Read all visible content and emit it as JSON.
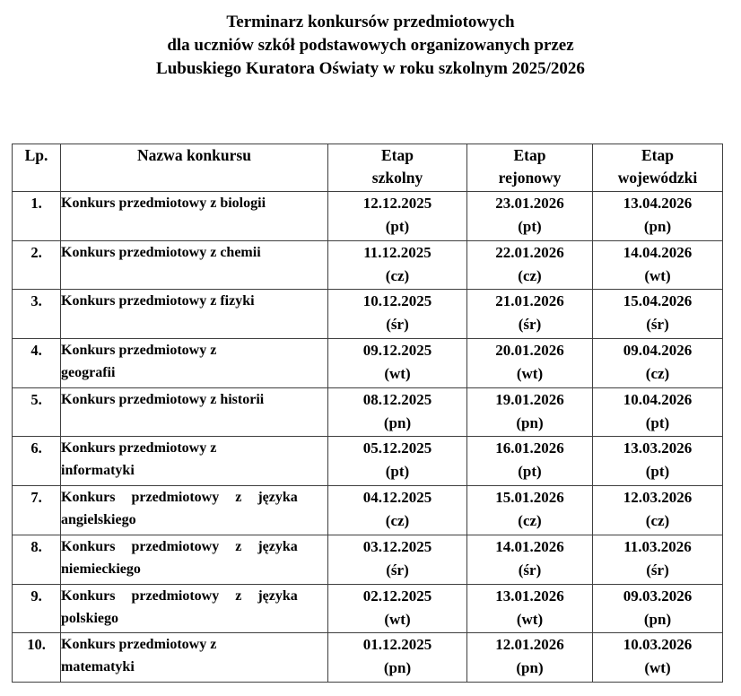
{
  "colors": {
    "background": "#ffffff",
    "text": "#000000",
    "table_border": "#3f3f3f"
  },
  "title": {
    "lines": [
      "Terminarz konkursów przedmiotowych",
      "dla uczniów szkół podstawowych organizowanych przez",
      "Lubuskiego Kuratora Oświaty w roku szkolnym 2025/2026"
    ]
  },
  "table": {
    "headers": {
      "lp": "Lp.",
      "name": "Nazwa konkursu",
      "school": {
        "line1": "Etap",
        "line2": "szkolny"
      },
      "regional": {
        "line1": "Etap",
        "line2": "rejonowy"
      },
      "voivodeship": {
        "line1": "Etap",
        "line2": "wojewódzki"
      }
    },
    "rows": [
      {
        "lp": "1.",
        "name_lines": [
          "Konkurs przedmiotowy z biologii"
        ],
        "justify": false,
        "school": [
          "12.12.2025",
          "(pt)"
        ],
        "regional": [
          "23.01.2026",
          "(pt)"
        ],
        "voivodeship": [
          "13.04.2026",
          "(pn)"
        ]
      },
      {
        "lp": "2.",
        "name_lines": [
          "Konkurs przedmiotowy z chemii"
        ],
        "justify": false,
        "school": [
          "11.12.2025",
          "(cz)"
        ],
        "regional": [
          "22.01.2026",
          "(cz)"
        ],
        "voivodeship": [
          "14.04.2026",
          "(wt)"
        ]
      },
      {
        "lp": "3.",
        "name_lines": [
          "Konkurs przedmiotowy z fizyki"
        ],
        "justify": false,
        "school": [
          "10.12.2025",
          "(śr)"
        ],
        "regional": [
          "21.01.2026",
          "(śr)"
        ],
        "voivodeship": [
          "15.04.2026",
          "(śr)"
        ]
      },
      {
        "lp": "4.",
        "name_lines": [
          "Konkurs przedmiotowy z",
          "geografii"
        ],
        "justify": false,
        "school": [
          "09.12.2025",
          "(wt)"
        ],
        "regional": [
          "20.01.2026",
          "(wt)"
        ],
        "voivodeship": [
          "09.04.2026",
          "(cz)"
        ]
      },
      {
        "lp": "5.",
        "name_lines": [
          "Konkurs przedmiotowy z historii"
        ],
        "justify": false,
        "school": [
          "08.12.2025",
          "(pn)"
        ],
        "regional": [
          "19.01.2026",
          "(pn)"
        ],
        "voivodeship": [
          "10.04.2026",
          "(pt)"
        ]
      },
      {
        "lp": "6.",
        "name_lines": [
          "Konkurs przedmiotowy z",
          "informatyki"
        ],
        "justify": false,
        "school": [
          "05.12.2025",
          "(pt)"
        ],
        "regional": [
          "16.01.2026",
          "(pt)"
        ],
        "voivodeship": [
          "13.03.2026",
          "(pt)"
        ]
      },
      {
        "lp": "7.",
        "name_lines": [
          "Konkurs przedmiotowy z języka",
          "angielskiego"
        ],
        "justify": true,
        "school": [
          "04.12.2025",
          "(cz)"
        ],
        "regional": [
          "15.01.2026",
          "(cz)"
        ],
        "voivodeship": [
          "12.03.2026",
          "(cz)"
        ]
      },
      {
        "lp": "8.",
        "name_lines": [
          "Konkurs przedmiotowy z języka",
          "niemieckiego"
        ],
        "justify": true,
        "school": [
          "03.12.2025",
          "(śr)"
        ],
        "regional": [
          "14.01.2026",
          "(śr)"
        ],
        "voivodeship": [
          "11.03.2026",
          "(śr)"
        ]
      },
      {
        "lp": "9.",
        "name_lines": [
          "Konkurs przedmiotowy z języka",
          "polskiego"
        ],
        "justify": true,
        "school": [
          "02.12.2025",
          "(wt)"
        ],
        "regional": [
          "13.01.2026",
          "(wt)"
        ],
        "voivodeship": [
          "09.03.2026",
          "(pn)"
        ]
      },
      {
        "lp": "10.",
        "name_lines": [
          "Konkurs przedmiotowy z",
          "matematyki"
        ],
        "justify": false,
        "school": [
          "01.12.2025",
          "(pn)"
        ],
        "regional": [
          "12.01.2026",
          "(pn)"
        ],
        "voivodeship": [
          "10.03.2026",
          "(wt)"
        ]
      }
    ]
  }
}
